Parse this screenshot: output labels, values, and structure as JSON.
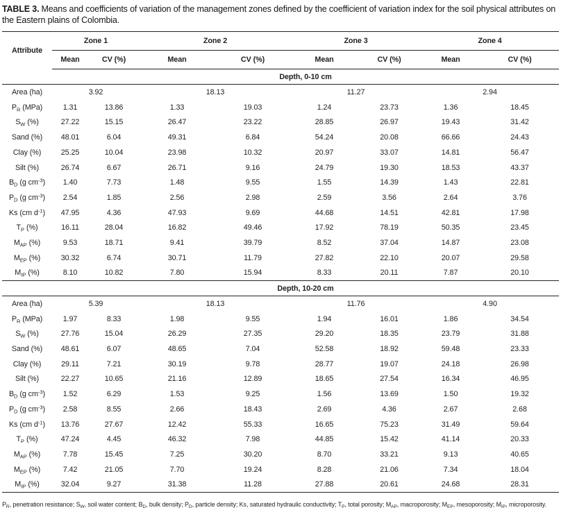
{
  "title": {
    "label": "TABLE 3.",
    "text": "Means and coefficients of variation of the management zones defined by the coefficient of variation index for the soil physical attributes on the Eastern plains of Colombia."
  },
  "table": {
    "attribute_header": "Attribute",
    "zone_headers": [
      "Zone 1",
      "Zone 2",
      "Zone 3",
      "Zone 4"
    ],
    "sub_headers": [
      "Mean",
      "CV (%)"
    ],
    "sections": [
      {
        "depth_label": "Depth, 0-10 cm",
        "rows": [
          {
            "label": [
              {
                "t": "Area (ha)"
              }
            ],
            "colspan": 2,
            "values": [
              "3.92",
              "18.13",
              "11.27",
              "2.94"
            ]
          },
          {
            "label": [
              {
                "t": "P"
              },
              {
                "t": "R",
                "s": "sub"
              },
              {
                "t": " (MPa)"
              }
            ],
            "values": [
              "1.31",
              "13.86",
              "1.33",
              "19.03",
              "1.24",
              "23.73",
              "1.36",
              "18.45"
            ]
          },
          {
            "label": [
              {
                "t": "S"
              },
              {
                "t": "W",
                "s": "sub"
              },
              {
                "t": " (%)"
              }
            ],
            "values": [
              "27.22",
              "15.15",
              "26.47",
              "23.22",
              "28.85",
              "26.97",
              "19.43",
              "31.42"
            ]
          },
          {
            "label": [
              {
                "t": "Sand (%)"
              }
            ],
            "values": [
              "48.01",
              "6.04",
              "49.31",
              "6.84",
              "54.24",
              "20.08",
              "66.66",
              "24.43"
            ]
          },
          {
            "label": [
              {
                "t": "Clay (%)"
              }
            ],
            "values": [
              "25.25",
              "10.04",
              "23.98",
              "10.32",
              "20.97",
              "33.07",
              "14.81",
              "56.47"
            ]
          },
          {
            "label": [
              {
                "t": "Silt (%)"
              }
            ],
            "values": [
              "26.74",
              "6.67",
              "26.71",
              "9.16",
              "24.79",
              "19.30",
              "18.53",
              "43.37"
            ]
          },
          {
            "label": [
              {
                "t": "B"
              },
              {
                "t": "D",
                "s": "sub"
              },
              {
                "t": " (g cm"
              },
              {
                "t": "-3",
                "s": "sup"
              },
              {
                "t": ")"
              }
            ],
            "values": [
              "1.40",
              "7.73",
              "1.48",
              "9.55",
              "1.55",
              "14.39",
              "1.43",
              "22.81"
            ]
          },
          {
            "label": [
              {
                "t": "P"
              },
              {
                "t": "D",
                "s": "sub"
              },
              {
                "t": " (g cm"
              },
              {
                "t": "-3",
                "s": "sup"
              },
              {
                "t": ")"
              }
            ],
            "values": [
              "2.54",
              "1.85",
              "2.56",
              "2.98",
              "2.59",
              "3.56",
              "2.64",
              "3.76"
            ]
          },
          {
            "label": [
              {
                "t": "Ks (cm d"
              },
              {
                "t": "-1",
                "s": "sup"
              },
              {
                "t": ")"
              }
            ],
            "values": [
              "47.95",
              "4.36",
              "47.93",
              "9.69",
              "44.68",
              "14.51",
              "42.81",
              "17.98"
            ]
          },
          {
            "label": [
              {
                "t": "T"
              },
              {
                "t": "P",
                "s": "sub"
              },
              {
                "t": " (%)"
              }
            ],
            "values": [
              "16.11",
              "28.04",
              "16.82",
              "49.46",
              "17.92",
              "78.19",
              "50.35",
              "23.45"
            ]
          },
          {
            "label": [
              {
                "t": "M"
              },
              {
                "t": "AP",
                "s": "sub"
              },
              {
                "t": " (%)"
              }
            ],
            "values": [
              "9.53",
              "18.71",
              "9.41",
              "39.79",
              "8.52",
              "37.04",
              "14.87",
              "23.08"
            ]
          },
          {
            "label": [
              {
                "t": "M"
              },
              {
                "t": "EP",
                "s": "sub"
              },
              {
                "t": " (%)"
              }
            ],
            "values": [
              "30.32",
              "6.74",
              "30.71",
              "11.79",
              "27.82",
              "22.10",
              "20.07",
              "29.58"
            ]
          },
          {
            "label": [
              {
                "t": "M"
              },
              {
                "t": "IP",
                "s": "sub"
              },
              {
                "t": " (%)"
              }
            ],
            "values": [
              "8.10",
              "10.82",
              "7.80",
              "15.94",
              "8.33",
              "20.11",
              "7.87",
              "20.10"
            ]
          }
        ]
      },
      {
        "depth_label": "Depth, 10-20 cm",
        "rows": [
          {
            "label": [
              {
                "t": "Area (ha)"
              }
            ],
            "colspan": 2,
            "values": [
              "5.39",
              "18.13",
              "11.76",
              "4.90"
            ]
          },
          {
            "label": [
              {
                "t": "P"
              },
              {
                "t": "R",
                "s": "sub"
              },
              {
                "t": " (MPa)"
              }
            ],
            "values": [
              "1.97",
              "8.33",
              "1.98",
              "9.55",
              "1.94",
              "16.01",
              "1.86",
              "34.54"
            ]
          },
          {
            "label": [
              {
                "t": "S"
              },
              {
                "t": "W",
                "s": "sub"
              },
              {
                "t": " (%)"
              }
            ],
            "values": [
              "27.76",
              "15.04",
              "26.29",
              "27.35",
              "29.20",
              "18.35",
              "23.79",
              "31.88"
            ]
          },
          {
            "label": [
              {
                "t": "Sand (%)"
              }
            ],
            "values": [
              "48.61",
              "6.07",
              "48.65",
              "7.04",
              "52.58",
              "18.92",
              "59.48",
              "23.33"
            ]
          },
          {
            "label": [
              {
                "t": "Clay (%)"
              }
            ],
            "values": [
              "29.11",
              "7.21",
              "30.19",
              "9.78",
              "28.77",
              "19.07",
              "24.18",
              "26.98"
            ]
          },
          {
            "label": [
              {
                "t": "Silt (%)"
              }
            ],
            "values": [
              "22.27",
              "10.65",
              "21.16",
              "12.89",
              "18.65",
              "27.54",
              "16.34",
              "46.95"
            ]
          },
          {
            "label": [
              {
                "t": "B"
              },
              {
                "t": "D",
                "s": "sub"
              },
              {
                "t": " (g cm"
              },
              {
                "t": "-3",
                "s": "sup"
              },
              {
                "t": ")"
              }
            ],
            "values": [
              "1.52",
              "6.29",
              "1.53",
              "9.25",
              "1.56",
              "13.69",
              "1.50",
              "19.32"
            ]
          },
          {
            "label": [
              {
                "t": "P"
              },
              {
                "t": "D",
                "s": "sub"
              },
              {
                "t": " (g cm"
              },
              {
                "t": "-3",
                "s": "sup"
              },
              {
                "t": ")"
              }
            ],
            "values": [
              "2.58",
              "8.55",
              "2.66",
              "18.43",
              "2.69",
              "4.36",
              "2.67",
              "2.68"
            ]
          },
          {
            "label": [
              {
                "t": "Ks (cm d"
              },
              {
                "t": "-1",
                "s": "sup"
              },
              {
                "t": ")"
              }
            ],
            "values": [
              "13.76",
              "27.67",
              "12.42",
              "55.33",
              "16.65",
              "75.23",
              "31.49",
              "59.64"
            ]
          },
          {
            "label": [
              {
                "t": "T"
              },
              {
                "t": "P",
                "s": "sub"
              },
              {
                "t": " (%)"
              }
            ],
            "values": [
              "47.24",
              "4.45",
              "46.32",
              "7.98",
              "44.85",
              "15.42",
              "41.14",
              "20.33"
            ]
          },
          {
            "label": [
              {
                "t": "M"
              },
              {
                "t": "AP",
                "s": "sub"
              },
              {
                "t": " (%)"
              }
            ],
            "values": [
              "7.78",
              "15.45",
              "7.25",
              "30.20",
              "8.70",
              "33.21",
              "9.13",
              "40.65"
            ]
          },
          {
            "label": [
              {
                "t": "M"
              },
              {
                "t": "EP",
                "s": "sub"
              },
              {
                "t": " (%)"
              }
            ],
            "values": [
              "7.42",
              "21.05",
              "7.70",
              "19.24",
              "8.28",
              "21.06",
              "7.34",
              "18.04"
            ]
          },
          {
            "label": [
              {
                "t": "M"
              },
              {
                "t": "IP",
                "s": "sub"
              },
              {
                "t": " (%)"
              }
            ],
            "values": [
              "32.04",
              "9.27",
              "31.38",
              "11.28",
              "27.88",
              "20.61",
              "24.68",
              "28.31"
            ]
          }
        ]
      }
    ]
  },
  "footnote": [
    {
      "t": "P"
    },
    {
      "t": "R",
      "s": "sub"
    },
    {
      "t": ", penetration resistance; S"
    },
    {
      "t": "W",
      "s": "sub"
    },
    {
      "t": ", soil water content; B"
    },
    {
      "t": "D",
      "s": "sub"
    },
    {
      "t": ", bulk density; P"
    },
    {
      "t": "D",
      "s": "sub"
    },
    {
      "t": ", particle density; Ks, saturated hydraulic conductivity; T"
    },
    {
      "t": "P",
      "s": "sub"
    },
    {
      "t": ", total porosity; M"
    },
    {
      "t": "AP",
      "s": "sub"
    },
    {
      "t": ", macroporosity; M"
    },
    {
      "t": "EP",
      "s": "sub"
    },
    {
      "t": ", mesoporosity; M"
    },
    {
      "t": "IP",
      "s": "sub"
    },
    {
      "t": ", microporosity."
    }
  ]
}
